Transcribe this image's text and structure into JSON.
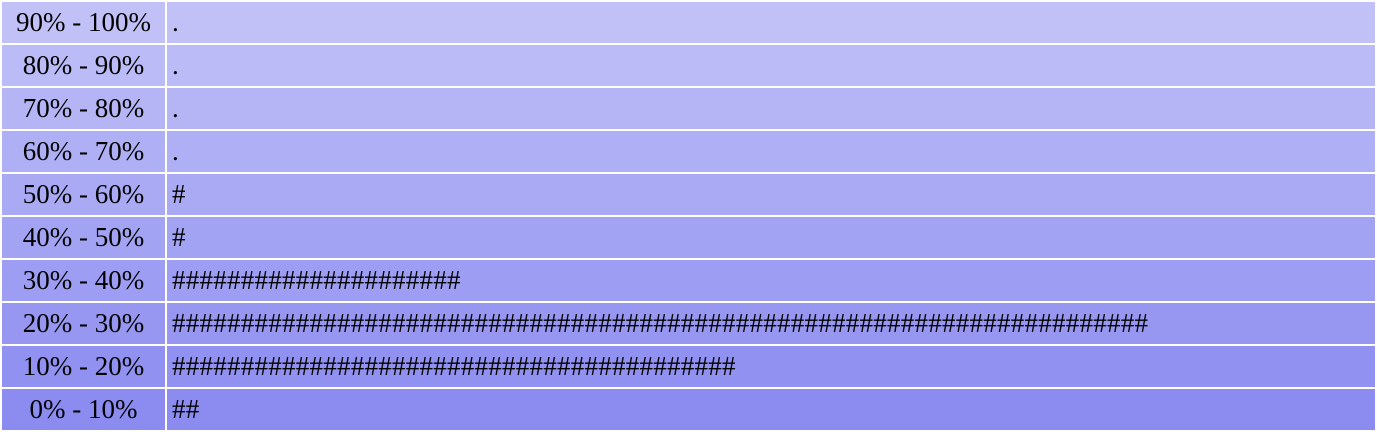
{
  "chart_data": {
    "type": "bar",
    "orientation": "horizontal",
    "categories": [
      "90% - 100%",
      "80% - 90%",
      "70% - 80%",
      "60% - 70%",
      "50% - 60%",
      "40% - 50%",
      "30% - 40%",
      "20% - 30%",
      "10% - 20%",
      "0% - 10%"
    ],
    "values": [
      0,
      0,
      0,
      0,
      1,
      1,
      21,
      71,
      41,
      2
    ],
    "bars": [
      ".",
      ".",
      ".",
      ".",
      "#",
      "#",
      "#####################",
      "#######################################################################",
      "#########################################",
      "##"
    ],
    "row_colors": [
      "#c1c1f8",
      "#bbbbf7",
      "#b5b5f6",
      "#afaff5",
      "#a9a9f4",
      "#a3a3f4",
      "#9d9df3",
      "#9797f2",
      "#9191f1",
      "#8b8bf0"
    ]
  }
}
